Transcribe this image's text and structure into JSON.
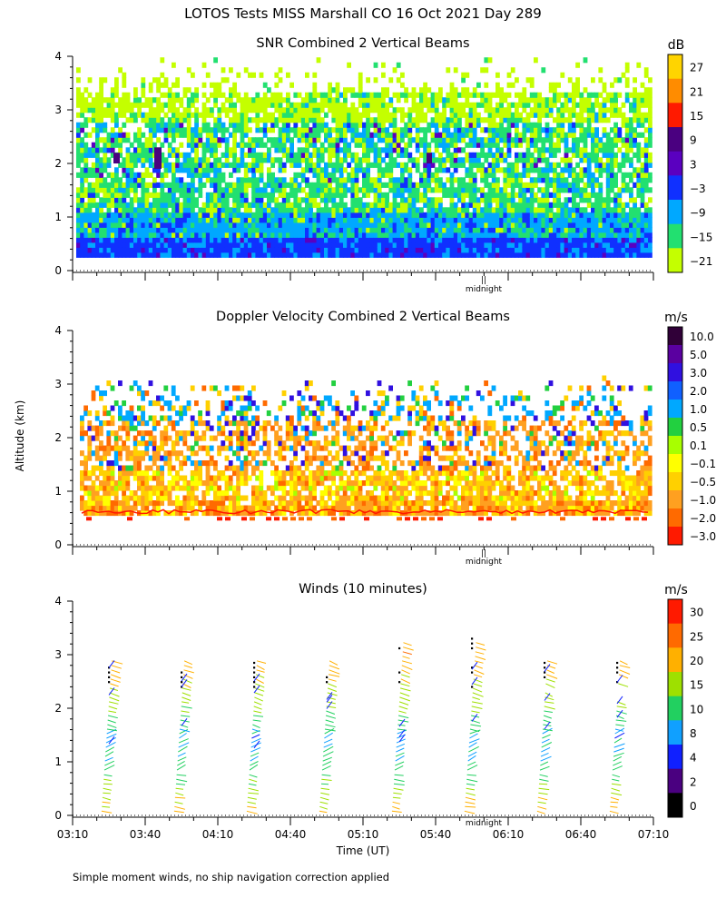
{
  "figure": {
    "title": "LOTOS Tests MISS Marshall CO  16 Oct 2021 Day 289",
    "ylabel": "Altitude (km)",
    "xlabel": "Time (UT)",
    "footnote": "Simple moment winds, no ship navigation correction applied",
    "midnight_label": "midnight",
    "midnight_marker": "||",
    "x_tick_labels": [
      "03:10",
      "03:40",
      "04:10",
      "04:40",
      "05:10",
      "05:40",
      "06:10",
      "06:40",
      "07:10"
    ]
  },
  "chart_data": [
    {
      "type": "heatmap",
      "title": "SNR Combined 2 Vertical Beams",
      "unit": "dB",
      "xlabel": "",
      "ylabel": "Altitude (km)",
      "xlim": [
        "03:10",
        "07:10"
      ],
      "ylim": [
        0,
        4
      ],
      "y_ticks": [
        0,
        1,
        2,
        3,
        4
      ],
      "colorbar": {
        "labels": [
          "27",
          "21",
          "15",
          "9",
          "3",
          "−3",
          "−9",
          "−15",
          "−21"
        ],
        "colors": [
          "#ffd400",
          "#ff8c00",
          "#ff1a00",
          "#4a0080",
          "#5a00c0",
          "#1030ff",
          "#00a8ff",
          "#22e070",
          "#c4ff00"
        ]
      },
      "altitude_bands": [
        {
          "from_km": 0.25,
          "to_km": 0.55,
          "dominant_db": -3,
          "dominant_color": "#1030ff"
        },
        {
          "from_km": 0.55,
          "to_km": 1.0,
          "dominant_db": -9,
          "dominant_color": "#00a8ff"
        },
        {
          "from_km": 1.0,
          "to_km": 1.6,
          "dominant_db": -15,
          "dominant_color": "#22e070"
        },
        {
          "from_km": 1.6,
          "to_km": 2.7,
          "dominant_db": -15,
          "dominant_color": "#22e070"
        },
        {
          "from_km": 2.7,
          "to_km": 3.8,
          "dominant_db": -21,
          "dominant_color": "#c4ff00"
        }
      ]
    },
    {
      "type": "heatmap",
      "title": "Doppler Velocity Combined 2 Vertical Beams",
      "unit": "m/s",
      "xlabel": "",
      "ylabel": "Altitude (km)",
      "xlim": [
        "03:10",
        "07:10"
      ],
      "ylim": [
        0,
        4
      ],
      "y_ticks": [
        0,
        1,
        2,
        3,
        4
      ],
      "colorbar": {
        "labels": [
          "10.0",
          "5.0",
          "3.0",
          "2.0",
          "1.0",
          "0.5",
          "0.1",
          "−0.1",
          "−0.5",
          "−1.0",
          "−2.0",
          "−3.0"
        ],
        "colors": [
          "#300038",
          "#5a00a0",
          "#3010e0",
          "#1060ff",
          "#00a8ff",
          "#22d040",
          "#a8ff00",
          "#ffff00",
          "#ffd000",
          "#ffa020",
          "#ff6a00",
          "#ff1a00"
        ]
      },
      "altitude_bands": [
        {
          "from_km": 0.3,
          "to_km": 0.6,
          "dominant_ms": -2.0,
          "dominant_color": "#ff6a00"
        },
        {
          "from_km": 0.6,
          "to_km": 1.2,
          "dominant_ms": -0.5,
          "dominant_color": "#ffd000"
        },
        {
          "from_km": 1.2,
          "to_km": 2.2,
          "dominant_ms": -1.0,
          "dominant_color": "#ffa020"
        },
        {
          "from_km": 2.2,
          "to_km": 3.0,
          "dominant_ms": 1.0,
          "dominant_color": "#00a8ff"
        }
      ]
    },
    {
      "type": "scatter",
      "title": "Winds (10 minutes)",
      "unit": "m/s",
      "xlabel": "Time (UT)",
      "ylabel": "Altitude (km)",
      "xlim": [
        "03:10",
        "07:10"
      ],
      "ylim": [
        0,
        4
      ],
      "y_ticks": [
        0,
        1,
        2,
        3,
        4
      ],
      "colorbar": {
        "labels": [
          "30",
          "25",
          "20",
          "15",
          "10",
          "8",
          "4",
          "2",
          "0"
        ],
        "colors": [
          "#ff1a00",
          "#ff6a00",
          "#ffb000",
          "#9ee000",
          "#22d060",
          "#10a0ff",
          "#1020ff",
          "#4a0080",
          "#000000"
        ]
      },
      "profile_times": [
        "03:25",
        "03:55",
        "04:25",
        "04:55",
        "05:25",
        "05:55",
        "06:25",
        "06:55"
      ],
      "speed_profile_km_ms": [
        {
          "alt": 0.1,
          "speed": 22
        },
        {
          "alt": 0.5,
          "speed": 17
        },
        {
          "alt": 1.0,
          "speed": 10
        },
        {
          "alt": 1.5,
          "speed": 9
        },
        {
          "alt": 2.0,
          "speed": 16
        },
        {
          "alt": 2.5,
          "speed": 20
        },
        {
          "alt": 2.9,
          "speed": 24
        }
      ]
    }
  ]
}
